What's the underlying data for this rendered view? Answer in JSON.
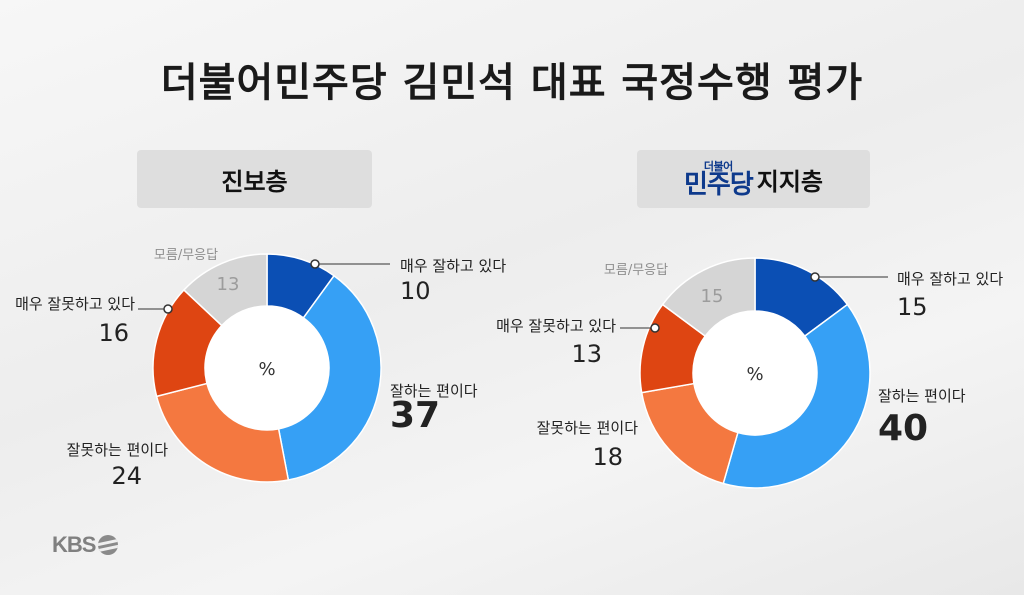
{
  "title": "더불어민주당 김민석 대표 국정수행 평가",
  "brand": "KBS",
  "chart_data": [
    {
      "type": "pie",
      "group": "진보층",
      "center_label": "%",
      "slices": [
        {
          "label": "매우 잘하고 있다",
          "value": 10,
          "color": "#0b4fb4"
        },
        {
          "label": "잘하는 편이다",
          "value": 37,
          "color": "#36a0f5"
        },
        {
          "label": "잘못하는 편이다",
          "value": 24,
          "color": "#f47840"
        },
        {
          "label": "매우 잘못하고 있다",
          "value": 16,
          "color": "#de4512"
        },
        {
          "label": "모름/무응답",
          "value": 13,
          "color": "#d5d5d5"
        }
      ]
    },
    {
      "type": "pie",
      "group_logo_small": "더불어",
      "group_logo": "민주당",
      "group": "지지층",
      "center_label": "%",
      "slices": [
        {
          "label": "매우 잘하고 있다",
          "value": 15,
          "color": "#0b4fb4"
        },
        {
          "label": "잘하는 편이다",
          "value": 40,
          "color": "#36a0f5"
        },
        {
          "label": "잘못하는 편이다",
          "value": 18,
          "color": "#f47840"
        },
        {
          "label": "매우 잘못하고 있다",
          "value": 13,
          "color": "#de4512"
        },
        {
          "label": "모름/무응답",
          "value": 15,
          "color": "#d5d5d5"
        }
      ]
    }
  ]
}
